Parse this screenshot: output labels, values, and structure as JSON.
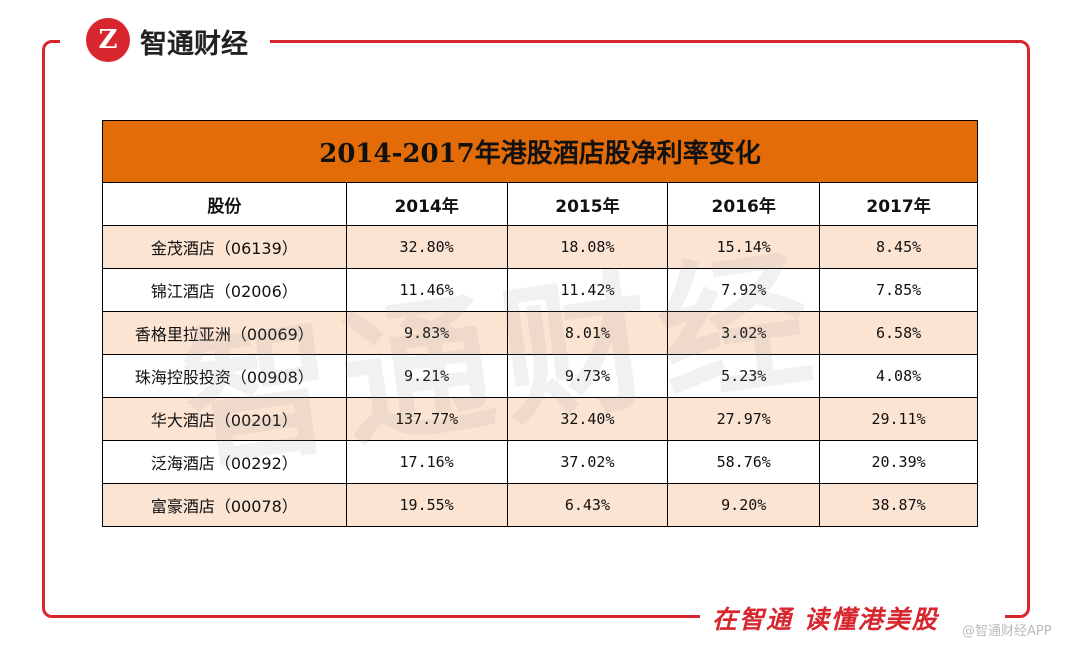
{
  "header": {
    "brand": "智通财经"
  },
  "table": {
    "title": "2014-2017年港股酒店股净利率变化",
    "columns": [
      "股份",
      "2014年",
      "2015年",
      "2016年",
      "2017年"
    ],
    "rows": [
      [
        "金茂酒店（06139）",
        "32.80%",
        "18.08%",
        "15.14%",
        "8.45%"
      ],
      [
        "锦江酒店（02006）",
        "11.46%",
        "11.42%",
        "7.92%",
        "7.85%"
      ],
      [
        "香格里拉亚洲（00069）",
        "9.83%",
        "8.01%",
        "3.02%",
        "6.58%"
      ],
      [
        "珠海控股投资（00908）",
        "9.21%",
        "9.73%",
        "5.23%",
        "4.08%"
      ],
      [
        "华大酒店（00201）",
        "137.77%",
        "32.40%",
        "27.97%",
        "29.11%"
      ],
      [
        "泛海酒店（00292）",
        "17.16%",
        "37.02%",
        "58.76%",
        "20.39%"
      ],
      [
        "富豪酒店（00078）",
        "19.55%",
        "6.43%",
        "9.20%",
        "38.87%"
      ]
    ]
  },
  "footer": {
    "slogan": "在智通 读懂港美股",
    "credit": "@智通财经APP"
  }
}
